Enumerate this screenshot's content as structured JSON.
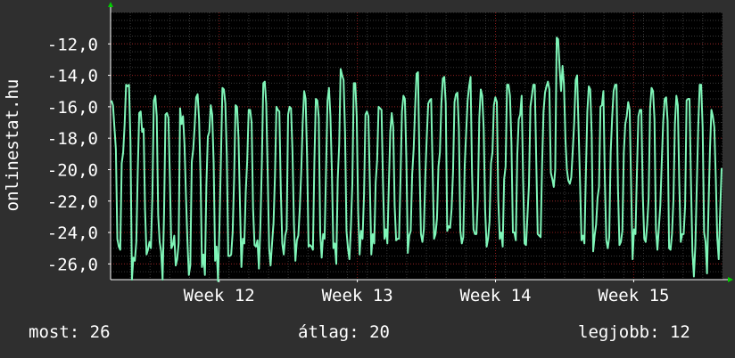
{
  "side_label": "onlinestat.hu",
  "footer": {
    "current": "most: 26",
    "average": "átlag: 20",
    "best": "legjobb: 12"
  },
  "colors": {
    "background": "#2f2f2f",
    "plot_background": "#000000",
    "line": "#7ff5b8",
    "grid": "#8a1a1a",
    "axis_arrow": "#00cc00"
  },
  "chart_data": {
    "type": "line",
    "title": "",
    "xlabel": "",
    "ylabel": "onlinestat.hu",
    "ylim": [
      -27,
      -10
    ],
    "x_range_days": [
      0,
      31
    ],
    "grid": true,
    "y_ticks": [
      "-12,0",
      "-14,0",
      "-16,0",
      "-18,0",
      "-20,0",
      "-22,0",
      "-24,0",
      "-26,0"
    ],
    "y_tick_values": [
      -12,
      -14,
      -16,
      -18,
      -20,
      -22,
      -24,
      -26
    ],
    "x_ticks": [
      "Week 12",
      "Week 13",
      "Week 14",
      "Week 15"
    ],
    "x_tick_days": [
      5.5,
      12.5,
      19.5,
      26.5
    ],
    "series": [
      {
        "values": [
          -15.6,
          -15.9,
          -17.3,
          -18.7,
          -24.4,
          -24.9,
          -25.1,
          -19.6,
          -18.9,
          -17.1,
          -14.6,
          -14.7,
          -14.6,
          -18.2,
          -27.0,
          -25.6,
          -25.8,
          -24.6,
          -20.1,
          -16.4,
          -16.3,
          -17.6,
          -17.4,
          -22.6,
          -25.4,
          -25.1,
          -24.6,
          -25.0,
          -21.7,
          -15.6,
          -15.3,
          -16.6,
          -22.9,
          -24.6,
          -25.2,
          -27.0,
          -22.8,
          -16.5,
          -16.4,
          -16.7,
          -20.5,
          -25.0,
          -24.8,
          -24.2,
          -26.1,
          -25.7,
          -24.7,
          -16.1,
          -17.1,
          -16.6,
          -18.4,
          -21.6,
          -24.5,
          -26.7,
          -26.1,
          -19.5,
          -18.7,
          -17.2,
          -15.4,
          -15.2,
          -16.8,
          -20.4,
          -26.2,
          -25.4,
          -26.7,
          -21.0,
          -17.9,
          -17.6,
          -15.9,
          -16.5,
          -19.6,
          -25.8,
          -24.9,
          -27.1,
          -23.5,
          -19.2,
          -14.8,
          -14.9,
          -15.8,
          -19.1,
          -25.5,
          -25.5,
          -25.4,
          -24.0,
          -20.6,
          -15.9,
          -16.0,
          -17.9,
          -22.1,
          -26.2,
          -24.4,
          -24.7,
          -21.4,
          -19.4,
          -16.2,
          -16.2,
          -17.0,
          -22.5,
          -24.8,
          -24.9,
          -24.5,
          -26.3,
          -23.6,
          -19.6,
          -14.5,
          -14.4,
          -15.8,
          -20.2,
          -25.0,
          -26.1,
          -24.7,
          -23.4,
          -20.4,
          -16.0,
          -16.2,
          -16.3,
          -21.3,
          -24.7,
          -25.4,
          -24.2,
          -23.8,
          -16.5,
          -16.0,
          -16.1,
          -18.9,
          -23.5,
          -25.8,
          -24.5,
          -24.2,
          -22.5,
          -20.1,
          -17.0,
          -15.0,
          -15.5,
          -19.2,
          -24.9,
          -24.8,
          -24.9,
          -25.1,
          -19.5,
          -15.5,
          -15.6,
          -16.7,
          -24.0,
          -25.6,
          -24.1,
          -24.4,
          -20.0,
          -15.6,
          -14.8,
          -16.6,
          -20.2,
          -25.0,
          -24.7,
          -26.0,
          -20.6,
          -18.4,
          -13.6,
          -14.0,
          -14.3,
          -17.6,
          -23.9,
          -25.0,
          -25.7,
          -23.7,
          -20.9,
          -14.5,
          -14.5,
          -16.6,
          -22.7,
          -25.4,
          -23.9,
          -24.4,
          -21.6,
          -16.5,
          -16.3,
          -16.6,
          -20.8,
          -25.4,
          -24.1,
          -24.7,
          -20.8,
          -19.4,
          -16.0,
          -16.1,
          -16.2,
          -20.8,
          -24.4,
          -23.8,
          -24.7,
          -21.0,
          -17.6,
          -16.4,
          -17.3,
          -22.3,
          -24.5,
          -24.4,
          -24.4,
          -20.6,
          -16.3,
          -15.3,
          -15.5,
          -19.3,
          -25.3,
          -24.2,
          -23.9,
          -20.3,
          -18.7,
          -16.1,
          -13.9,
          -13.8,
          -19.5,
          -24.1,
          -24.6,
          -23.8,
          -20.4,
          -17.9,
          -15.8,
          -15.6,
          -15.5,
          -20.0,
          -24.4,
          -24.1,
          -23.1,
          -19.8,
          -18.9,
          -15.8,
          -14.2,
          -14.1,
          -15.8,
          -23.9,
          -23.6,
          -23.7,
          -22.5,
          -20.1,
          -15.7,
          -15.2,
          -15.1,
          -17.4,
          -23.9,
          -24.7,
          -24.3,
          -19.7,
          -17.6,
          -15.6,
          -14.7,
          -14.1,
          -20.2,
          -23.8,
          -24.1,
          -24.1,
          -21.8,
          -16.7,
          -14.9,
          -15.3,
          -17.4,
          -22.6,
          -24.9,
          -24.4,
          -23.3,
          -19.6,
          -18.9,
          -15.9,
          -15.4,
          -15.7,
          -21.9,
          -24.4,
          -24.0,
          -24.9,
          -20.6,
          -19.8,
          -14.6,
          -14.6,
          -15.3,
          -18.3,
          -24.0,
          -24.0,
          -24.5,
          -19.1,
          -16.8,
          -16.5,
          -15.3,
          -20.6,
          -24.7,
          -24.8,
          -22.9,
          -21.0,
          -16.0,
          -15.3,
          -14.6,
          -14.6,
          -19.4,
          -24.1,
          -24.2,
          -24.3,
          -19.7,
          -16.3,
          -15.1,
          -14.7,
          -14.4,
          -14.9,
          -20.2,
          -20.6,
          -21.1,
          -20.0,
          -11.6,
          -11.7,
          -13.5,
          -15.0,
          -13.4,
          -14.6,
          -18.1,
          -20.0,
          -20.7,
          -20.9,
          -20.5,
          -18.8,
          -17.0,
          -14.3,
          -14.0,
          -17.4,
          -20.8,
          -24.5,
          -24.2,
          -24.7,
          -20.3,
          -16.3,
          -14.7,
          -14.9,
          -17.8,
          -25.2,
          -24.2,
          -23.5,
          -21.8,
          -21.1,
          -16.0,
          -15.9,
          -15.0,
          -20.7,
          -24.5,
          -25.0,
          -24.3,
          -18.9,
          -16.7,
          -15.0,
          -14.6,
          -14.6,
          -21.2,
          -24.8,
          -24.6,
          -23.9,
          -18.9,
          -17.1,
          -16.6,
          -15.7,
          -16.2,
          -21.0,
          -25.7,
          -23.8,
          -24.1,
          -20.1,
          -16.6,
          -16.2,
          -16.2,
          -21.6,
          -24.4,
          -24.6,
          -23.5,
          -21.8,
          -16.1,
          -14.8,
          -15.0,
          -16.8,
          -23.8,
          -25.1,
          -23.7,
          -22.3,
          -19.5,
          -16.9,
          -15.5,
          -15.4,
          -16.9,
          -25.0,
          -25.1,
          -24.1,
          -21.9,
          -17.1,
          -15.3,
          -15.9,
          -20.9,
          -24.6,
          -24.1,
          -24.1,
          -22.3,
          -15.6,
          -15.5,
          -15.5,
          -20.8,
          -25.2,
          -26.8,
          -24.8,
          -21.0,
          -17.2,
          -14.6,
          -14.6,
          -17.3,
          -24.0,
          -24.6,
          -26.6,
          -22.5,
          -18.8,
          -16.2,
          -16.6,
          -17.3,
          -20.5,
          -24.3,
          -25.7,
          -22.7,
          -19.9
        ]
      }
    ]
  }
}
